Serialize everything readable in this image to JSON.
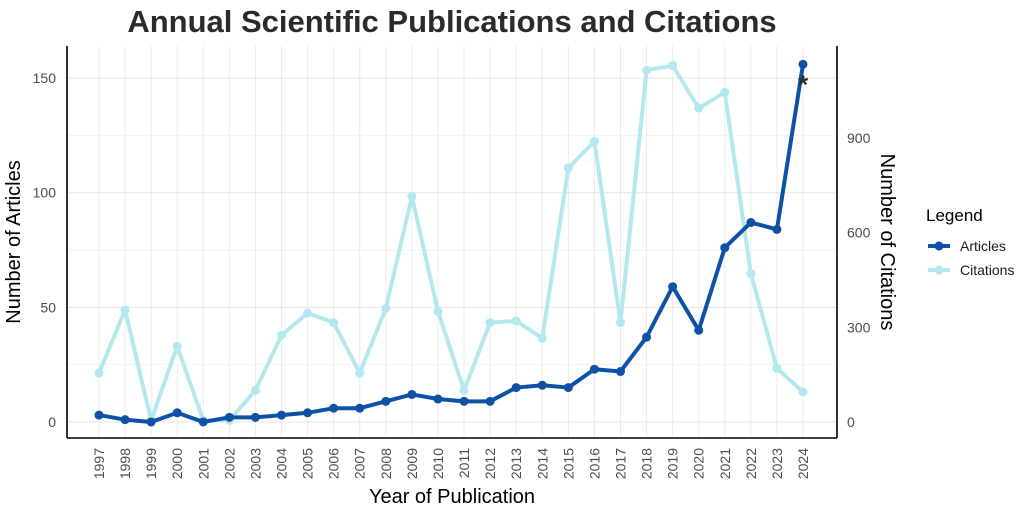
{
  "chart_data": {
    "type": "line",
    "title": "Annual Scientific Publications and Citations",
    "xlabel": "Year of Publication",
    "ylabel": "Number of Articles",
    "y2label": "Number of Citations",
    "categories": [
      "1997",
      "1998",
      "1999",
      "2000",
      "2001",
      "2002",
      "2003",
      "2004",
      "2005",
      "2006",
      "2007",
      "2008",
      "2009",
      "2010",
      "2011",
      "2012",
      "2013",
      "2014",
      "2015",
      "2016",
      "2017",
      "2018",
      "2019",
      "2020",
      "2021",
      "2022",
      "2023",
      "2024"
    ],
    "series": [
      {
        "name": "Articles",
        "axis": "left",
        "color": "#0d52a6",
        "values": [
          3,
          1,
          0,
          4,
          0,
          2,
          2,
          3,
          4,
          6,
          6,
          9,
          12,
          10,
          9,
          9,
          15,
          16,
          15,
          23,
          22,
          37,
          59,
          40,
          76,
          87,
          84,
          156
        ]
      },
      {
        "name": "Citations",
        "axis": "right",
        "color": "#b3e9ee",
        "values": [
          155,
          355,
          5,
          240,
          5,
          5,
          100,
          275,
          345,
          315,
          155,
          360,
          715,
          350,
          100,
          315,
          320,
          265,
          805,
          890,
          315,
          1115,
          1130,
          995,
          1045,
          470,
          170,
          95
        ]
      }
    ],
    "ylim": [
      -7,
      164
    ],
    "y2lim": [
      -51,
      1192
    ],
    "yticks": [
      0,
      50,
      100,
      150
    ],
    "y2ticks": [
      0,
      300,
      600,
      900
    ],
    "legend": {
      "title": "Legend",
      "position": "right",
      "items": [
        "Articles",
        "Citations"
      ]
    },
    "annotation": {
      "text": "*",
      "x": "2024"
    },
    "grid": true
  }
}
